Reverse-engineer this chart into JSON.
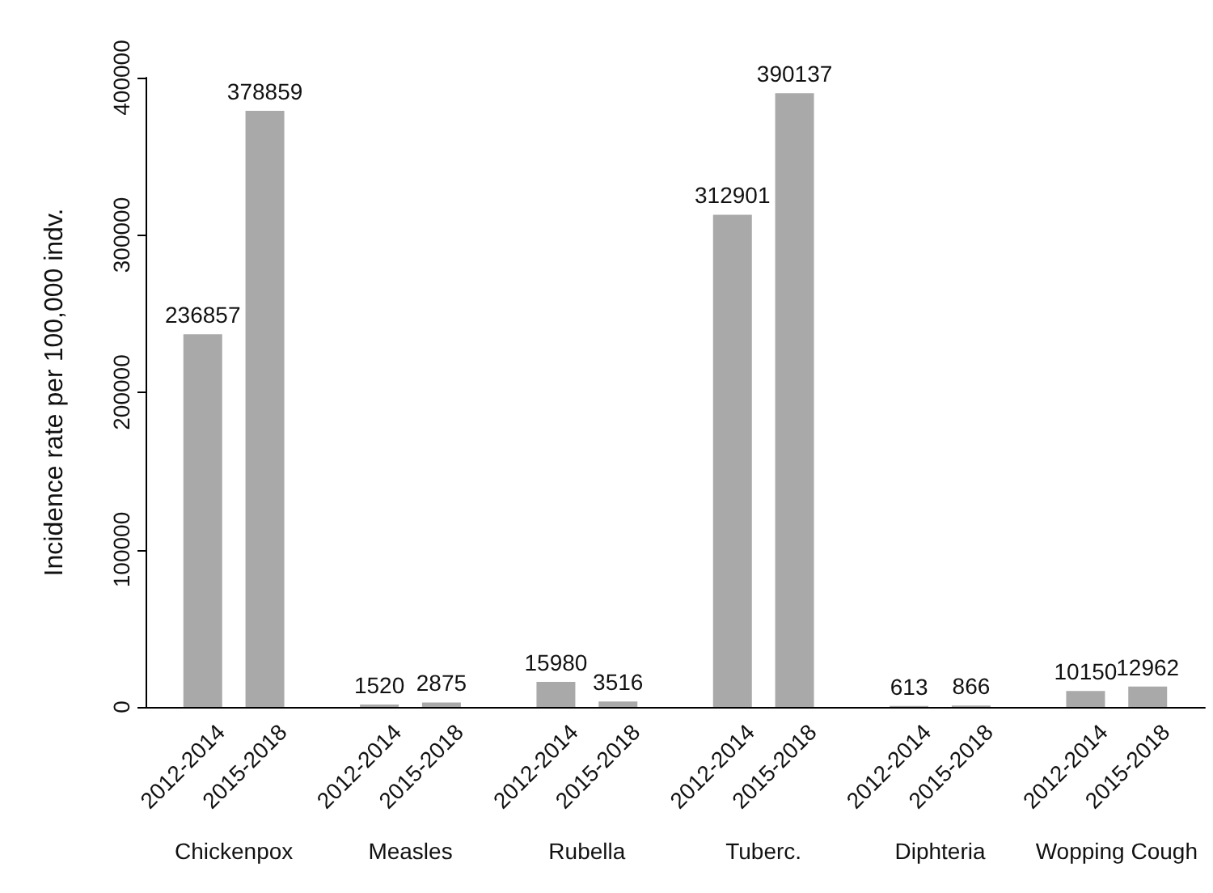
{
  "chart_data": {
    "type": "bar",
    "ylabel": "Incidence rate per 100,000 indv.",
    "categories": [
      "Chickenpox",
      "Measles",
      "Rubella",
      "Tuberc.",
      "Diphteria",
      "Wopping Cough"
    ],
    "series": [
      {
        "name": "2012-2014",
        "color": "#a9a9a9",
        "values": [
          236857,
          1520,
          15980,
          312901,
          613,
          10150
        ]
      },
      {
        "name": "2015-2018",
        "color": "#a9a9a9",
        "values": [
          378859,
          2875,
          3516,
          390137,
          866,
          12962
        ]
      }
    ],
    "ylim": [
      0,
      400000
    ],
    "yticks": [
      0,
      100000,
      200000,
      300000,
      400000
    ],
    "data_labels": true
  }
}
